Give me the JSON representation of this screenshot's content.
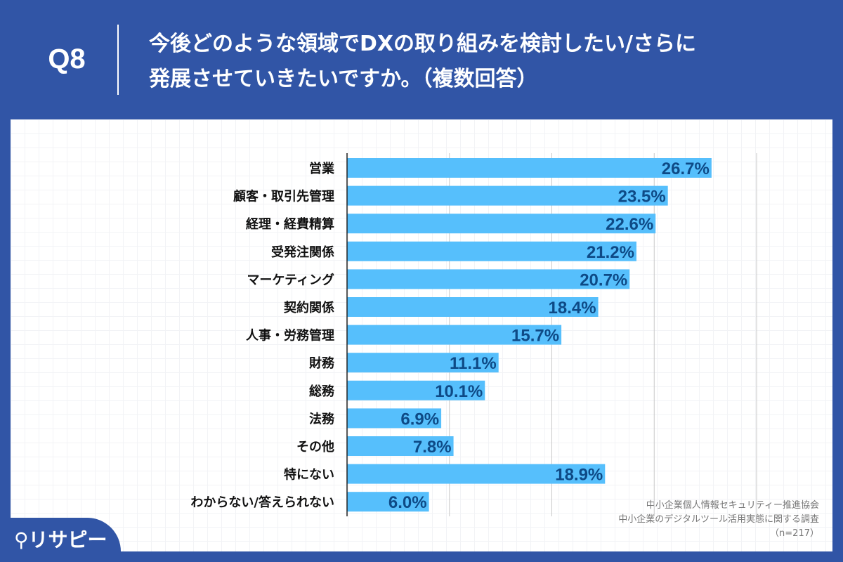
{
  "header": {
    "question_number": "Q8",
    "title_line1": "今後どのような領域でDXの取り組みを検討したい/さらに",
    "title_line2": "発展させていきたいですか。（複数回答）"
  },
  "logo": {
    "text": "リサピー"
  },
  "source": {
    "line1": "中小企業個人情報セキュリティー推進協会",
    "line2": "中小企業のデジタルツール活用実態に関する調査",
    "line3": "（n=217）"
  },
  "colors": {
    "background": "#3155a6",
    "bar": "#56bffc",
    "value_label": "#0e4a86",
    "gridline": "#c8c8c8"
  },
  "chart_data": {
    "type": "bar",
    "orientation": "horizontal",
    "categories": [
      "営業",
      "顧客・取引先管理",
      "経理・経費精算",
      "受発注関係",
      "マーケティング",
      "契約関係",
      "人事・労務管理",
      "財務",
      "総務",
      "法務",
      "その他",
      "特にない",
      "わからない/答えられない"
    ],
    "values": [
      26.7,
      23.5,
      22.6,
      21.2,
      20.7,
      18.4,
      15.7,
      11.1,
      10.1,
      6.9,
      7.8,
      18.9,
      6.0
    ],
    "value_labels": [
      "26.7%",
      "23.5%",
      "22.6%",
      "21.2%",
      "20.7%",
      "18.4%",
      "15.7%",
      "11.1%",
      "10.1%",
      "6.9%",
      "7.8%",
      "18.9%",
      "6.0%"
    ],
    "xlim": [
      0,
      30
    ],
    "gridlines": [
      7.5,
      15,
      22.5,
      30
    ],
    "grid": true
  }
}
